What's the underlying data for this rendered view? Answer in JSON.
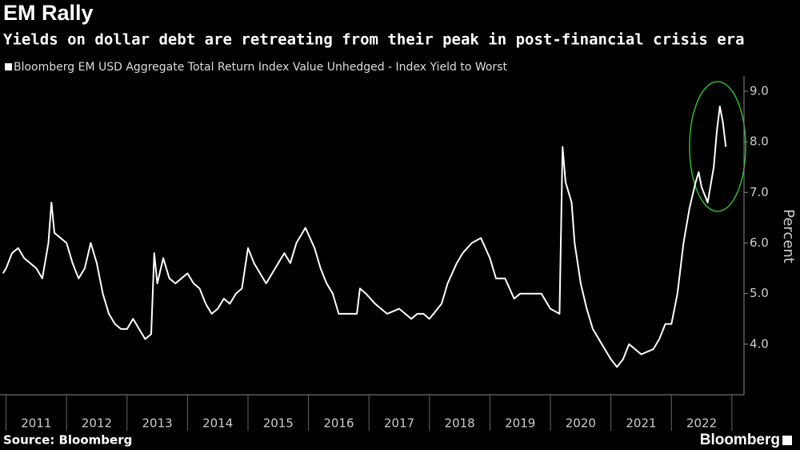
{
  "chart_data": {
    "type": "line",
    "title": "EM Rally",
    "subtitle": "Yields on dollar debt are retreating from their peak in post-financial crisis era",
    "y_label": "Percent",
    "source": "Source: Bloomberg",
    "brand": "Bloomberg",
    "series": [
      {
        "name": "Bloomberg EM USD Aggregate Total Return Index Value Unhedged - Index Yield to Worst",
        "color": "#ffffff",
        "x": [
          2010.95,
          2011.0,
          2011.1,
          2011.2,
          2011.3,
          2011.4,
          2011.5,
          2011.6,
          2011.7,
          2011.75,
          2011.8,
          2011.9,
          2012.0,
          2012.1,
          2012.2,
          2012.3,
          2012.4,
          2012.5,
          2012.6,
          2012.7,
          2012.8,
          2012.9,
          2013.0,
          2013.1,
          2013.2,
          2013.3,
          2013.4,
          2013.45,
          2013.5,
          2013.6,
          2013.7,
          2013.8,
          2013.9,
          2014.0,
          2014.1,
          2014.2,
          2014.3,
          2014.4,
          2014.5,
          2014.6,
          2014.7,
          2014.8,
          2014.9,
          2015.0,
          2015.1,
          2015.2,
          2015.3,
          2015.4,
          2015.5,
          2015.6,
          2015.7,
          2015.8,
          2015.95,
          2016.1,
          2016.2,
          2016.3,
          2016.4,
          2016.5,
          2016.6,
          2016.8,
          2016.85,
          2016.95,
          2017.1,
          2017.3,
          2017.5,
          2017.6,
          2017.7,
          2017.8,
          2017.9,
          2018.0,
          2018.2,
          2018.3,
          2018.45,
          2018.55,
          2018.7,
          2018.85,
          2019.0,
          2019.1,
          2019.25,
          2019.4,
          2019.5,
          2019.7,
          2019.85,
          2020.0,
          2020.15,
          2020.2,
          2020.25,
          2020.35,
          2020.4,
          2020.5,
          2020.6,
          2020.7,
          2020.85,
          2021.0,
          2021.1,
          2021.2,
          2021.3,
          2021.5,
          2021.7,
          2021.8,
          2021.9,
          2022.0,
          2022.1,
          2022.2,
          2022.3,
          2022.4,
          2022.45,
          2022.5,
          2022.6,
          2022.7,
          2022.75,
          2022.8,
          2022.85,
          2022.9
        ],
        "values": [
          5.4,
          5.5,
          5.8,
          5.9,
          5.7,
          5.6,
          5.5,
          5.3,
          6.0,
          6.8,
          6.2,
          6.1,
          6.0,
          5.6,
          5.3,
          5.5,
          6.0,
          5.6,
          5.0,
          4.6,
          4.4,
          4.3,
          4.3,
          4.5,
          4.3,
          4.1,
          4.2,
          5.8,
          5.2,
          5.7,
          5.3,
          5.2,
          5.3,
          5.4,
          5.2,
          5.1,
          4.8,
          4.6,
          4.7,
          4.9,
          4.8,
          5.0,
          5.1,
          5.9,
          5.6,
          5.4,
          5.2,
          5.4,
          5.6,
          5.8,
          5.6,
          6.0,
          6.3,
          5.9,
          5.5,
          5.2,
          5.0,
          4.6,
          4.6,
          4.6,
          5.1,
          5.0,
          4.8,
          4.6,
          4.7,
          4.6,
          4.5,
          4.6,
          4.6,
          4.5,
          4.8,
          5.2,
          5.6,
          5.8,
          6.0,
          6.1,
          5.7,
          5.3,
          5.3,
          4.9,
          5.0,
          5.0,
          5.0,
          4.7,
          4.6,
          7.9,
          7.2,
          6.8,
          6.0,
          5.2,
          4.7,
          4.3,
          4.0,
          3.7,
          3.55,
          3.7,
          4.0,
          3.8,
          3.9,
          4.1,
          4.4,
          4.4,
          5.0,
          6.0,
          6.7,
          7.2,
          7.4,
          7.1,
          6.8,
          7.5,
          8.2,
          8.7,
          8.4,
          7.9
        ]
      }
    ],
    "xlim": [
      2010.9,
      2023.2
    ],
    "xticks": [
      {
        "value": 2011.5,
        "label": "2011"
      },
      {
        "value": 2012.5,
        "label": "2012"
      },
      {
        "value": 2013.5,
        "label": "2013"
      },
      {
        "value": 2014.5,
        "label": "2014"
      },
      {
        "value": 2015.5,
        "label": "2015"
      },
      {
        "value": 2016.5,
        "label": "2016"
      },
      {
        "value": 2017.5,
        "label": "2017"
      },
      {
        "value": 2018.5,
        "label": "2018"
      },
      {
        "value": 2019.5,
        "label": "2019"
      },
      {
        "value": 2020.5,
        "label": "2020"
      },
      {
        "value": 2021.5,
        "label": "2021"
      },
      {
        "value": 2022.5,
        "label": "2022"
      }
    ],
    "ylim": [
      3.0,
      9.3
    ],
    "yticks": [
      {
        "value": 4,
        "label": "4.0"
      },
      {
        "value": 5,
        "label": "5.0"
      },
      {
        "value": 6,
        "label": "6.0"
      },
      {
        "value": 7,
        "label": "7.0"
      },
      {
        "value": 8,
        "label": "8.0"
      },
      {
        "value": 9,
        "label": "9.0"
      }
    ],
    "grid": false
  }
}
